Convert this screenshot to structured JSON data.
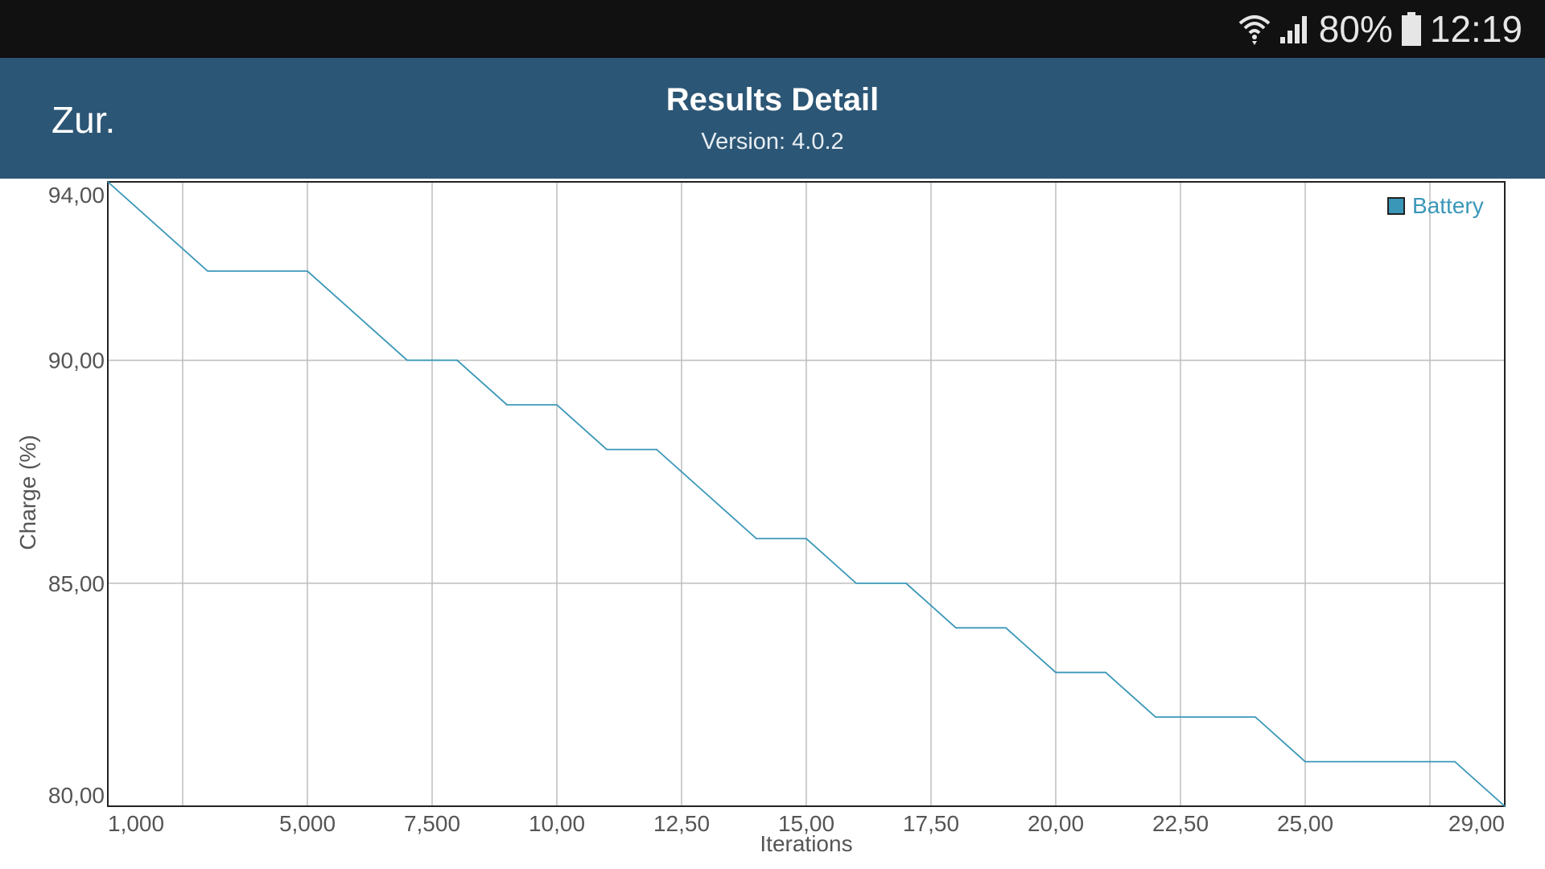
{
  "status_bar": {
    "battery_text": "80%",
    "time": "12:19",
    "icons": [
      "wifi-icon",
      "signal-icon",
      "battery-icon"
    ]
  },
  "header": {
    "back_label": "Zur.",
    "title": "Results Detail",
    "subtitle": "Version: 4.0.2",
    "background": "#2c5675"
  },
  "chart_data": {
    "type": "line",
    "xlabel": "Iterations",
    "ylabel": "Charge (%)",
    "xlim": [
      0,
      28000
    ],
    "ylim": [
      80,
      94
    ],
    "x_ticks": [
      {
        "value": 0,
        "label": "1,000"
      },
      {
        "value": 4000,
        "label": "5,000"
      },
      {
        "value": 6500,
        "label": "7,500"
      },
      {
        "value": 9000,
        "label": "10,00"
      },
      {
        "value": 11500,
        "label": "12,50"
      },
      {
        "value": 14000,
        "label": "15,00"
      },
      {
        "value": 16500,
        "label": "17,50"
      },
      {
        "value": 19000,
        "label": "20,00"
      },
      {
        "value": 21500,
        "label": "22,50"
      },
      {
        "value": 24000,
        "label": "25,00"
      },
      {
        "value": 28000,
        "label": "29,00"
      }
    ],
    "x_gridlines": [
      1500,
      4000,
      6500,
      9000,
      11500,
      14000,
      16500,
      19000,
      21500,
      24000,
      26500
    ],
    "y_ticks": [
      {
        "value": 94,
        "label": "94,00"
      },
      {
        "value": 90,
        "label": "90,00"
      },
      {
        "value": 85,
        "label": "85,00"
      },
      {
        "value": 80,
        "label": "80,00"
      }
    ],
    "y_gridlines": [
      90,
      85
    ],
    "grid": true,
    "legend_position": "top-right",
    "series": [
      {
        "name": "Battery",
        "color": "#3a97b8",
        "x": [
          0,
          2000,
          4000,
          6000,
          7000,
          8000,
          9000,
          10000,
          11000,
          12000,
          13000,
          14000,
          15000,
          16000,
          17000,
          18000,
          19000,
          20000,
          21000,
          22000,
          23000,
          24000,
          25000,
          26000,
          27000,
          28000
        ],
        "y": [
          94,
          92,
          92,
          90,
          90,
          89,
          89,
          88,
          88,
          87,
          86,
          86,
          85,
          85,
          84,
          84,
          83,
          83,
          82,
          82,
          82,
          81,
          81,
          81,
          81,
          80
        ]
      }
    ]
  }
}
